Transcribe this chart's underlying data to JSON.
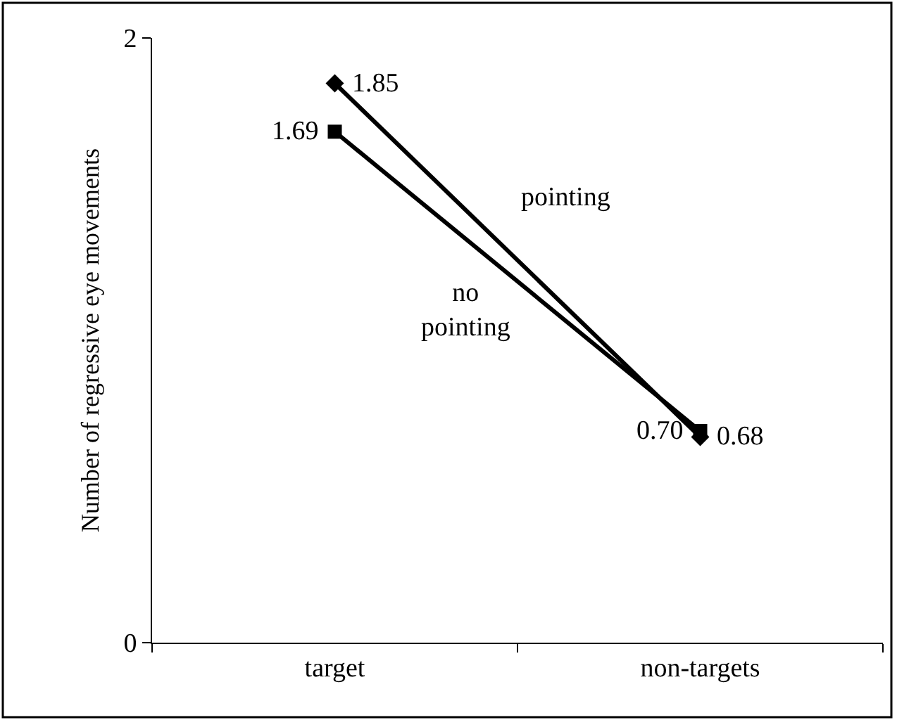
{
  "chart_data": {
    "type": "line",
    "ylabel": "Number of regressive eye movements",
    "categories": [
      "target",
      "non-targets"
    ],
    "series": [
      {
        "name": "pointing",
        "color": "#000000",
        "marker": "diamond",
        "values": [
          1.85,
          0.68
        ],
        "value_labels": [
          "1.85",
          "0.68"
        ]
      },
      {
        "name": "no pointing",
        "color": "#000000",
        "marker": "square",
        "values": [
          1.69,
          0.7
        ],
        "value_labels": [
          "1.69",
          "0.70"
        ]
      }
    ],
    "ylim": [
      0,
      2
    ],
    "yticks": [
      0,
      2
    ],
    "grid": false,
    "line_style": "solid"
  }
}
